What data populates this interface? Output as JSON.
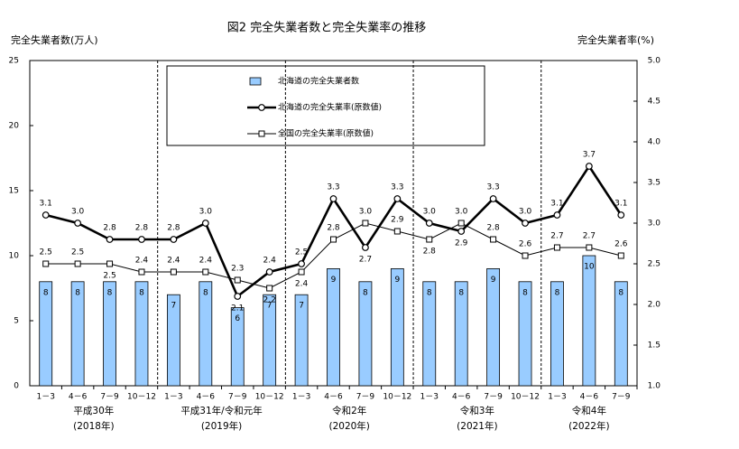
{
  "chart_data": {
    "type": "combo",
    "title": "図2 完全失業者数と完全失業率の推移",
    "ylabel": "完全失業者数(万人)",
    "y2label": "完全失業者率(%)",
    "categories": [
      "1－3",
      "4－6",
      "7－9",
      "10－12",
      "1－3",
      "4－6",
      "7－9",
      "10－12",
      "1－3",
      "4－6",
      "7－9",
      "10－12",
      "1－3",
      "4－6",
      "7－9",
      "10－12",
      "1－3",
      "4－6",
      "7－9"
    ],
    "groups": [
      {
        "name": "平成30年",
        "year": "(2018年)"
      },
      {
        "name": "平成31年/令和元年",
        "year": "(2019年)"
      },
      {
        "name": "令和2年",
        "year": "(2020年)"
      },
      {
        "name": "令和3年",
        "year": "(2021年)"
      },
      {
        "name": "令和4年",
        "year": "(2022年)"
      }
    ],
    "series": [
      {
        "name": "北海道の完全失業者数",
        "type": "bar",
        "color": "#99ccff",
        "values": [
          8,
          8,
          8,
          8,
          7,
          8,
          6,
          7,
          7,
          9,
          8,
          9,
          8,
          8,
          9,
          8,
          8,
          10,
          8
        ]
      },
      {
        "name": "北海道の完全失業率(原数値)",
        "type": "line",
        "axis": "y2",
        "color": "#000000",
        "marker": "circle",
        "values": [
          3.1,
          3.0,
          2.8,
          2.8,
          2.8,
          3.0,
          2.1,
          2.4,
          2.5,
          3.3,
          2.7,
          3.3,
          3.0,
          2.9,
          3.3,
          3.0,
          3.1,
          3.7,
          3.1
        ],
        "value_labels": [
          "3.1",
          "3.0",
          "2.8",
          "2.8",
          "2.8",
          "3.0",
          "2.1",
          "2.4",
          "2.5",
          "3.3",
          "2.7",
          "3.3",
          "3.0",
          "2.9",
          "3.3",
          "3.0",
          "3.1",
          "3.7",
          "3.1"
        ]
      },
      {
        "name": "全国の完全失業率(原数値)",
        "type": "line",
        "axis": "y2",
        "color": "#000000",
        "marker": "square",
        "values": [
          2.5,
          2.5,
          2.5,
          2.4,
          2.4,
          2.4,
          2.3,
          2.2,
          2.4,
          2.8,
          3.0,
          2.9,
          2.8,
          3.0,
          2.8,
          2.6,
          2.7,
          2.7,
          2.6
        ],
        "value_labels": [
          "2.5",
          "2.5",
          "2.5",
          "2.4",
          "2.4",
          "2.4",
          "2.3",
          "2.2",
          "2.4",
          "2.8",
          "3.0",
          "2.9",
          "2.8",
          "3.0",
          "2.8",
          "2.6",
          "2.7",
          "2.7",
          "2.6"
        ]
      }
    ],
    "ylim": [
      0,
      25
    ],
    "yticks": [
      0,
      5,
      10,
      15,
      20,
      25
    ],
    "y2lim": [
      1,
      5
    ],
    "y2ticks": [
      {
        "value": 1,
        "label": "1.0"
      },
      {
        "value": 1.5,
        "label": "1.5"
      },
      {
        "value": 2,
        "label": "2.0"
      },
      {
        "value": 2.5,
        "label": "2.5"
      },
      {
        "value": 3,
        "label": "3.0"
      },
      {
        "value": 3.5,
        "label": "3.5"
      },
      {
        "value": 4,
        "label": "4.0"
      },
      {
        "value": 4.5,
        "label": "4.5"
      },
      {
        "value": 5,
        "label": "5.0"
      }
    ]
  }
}
